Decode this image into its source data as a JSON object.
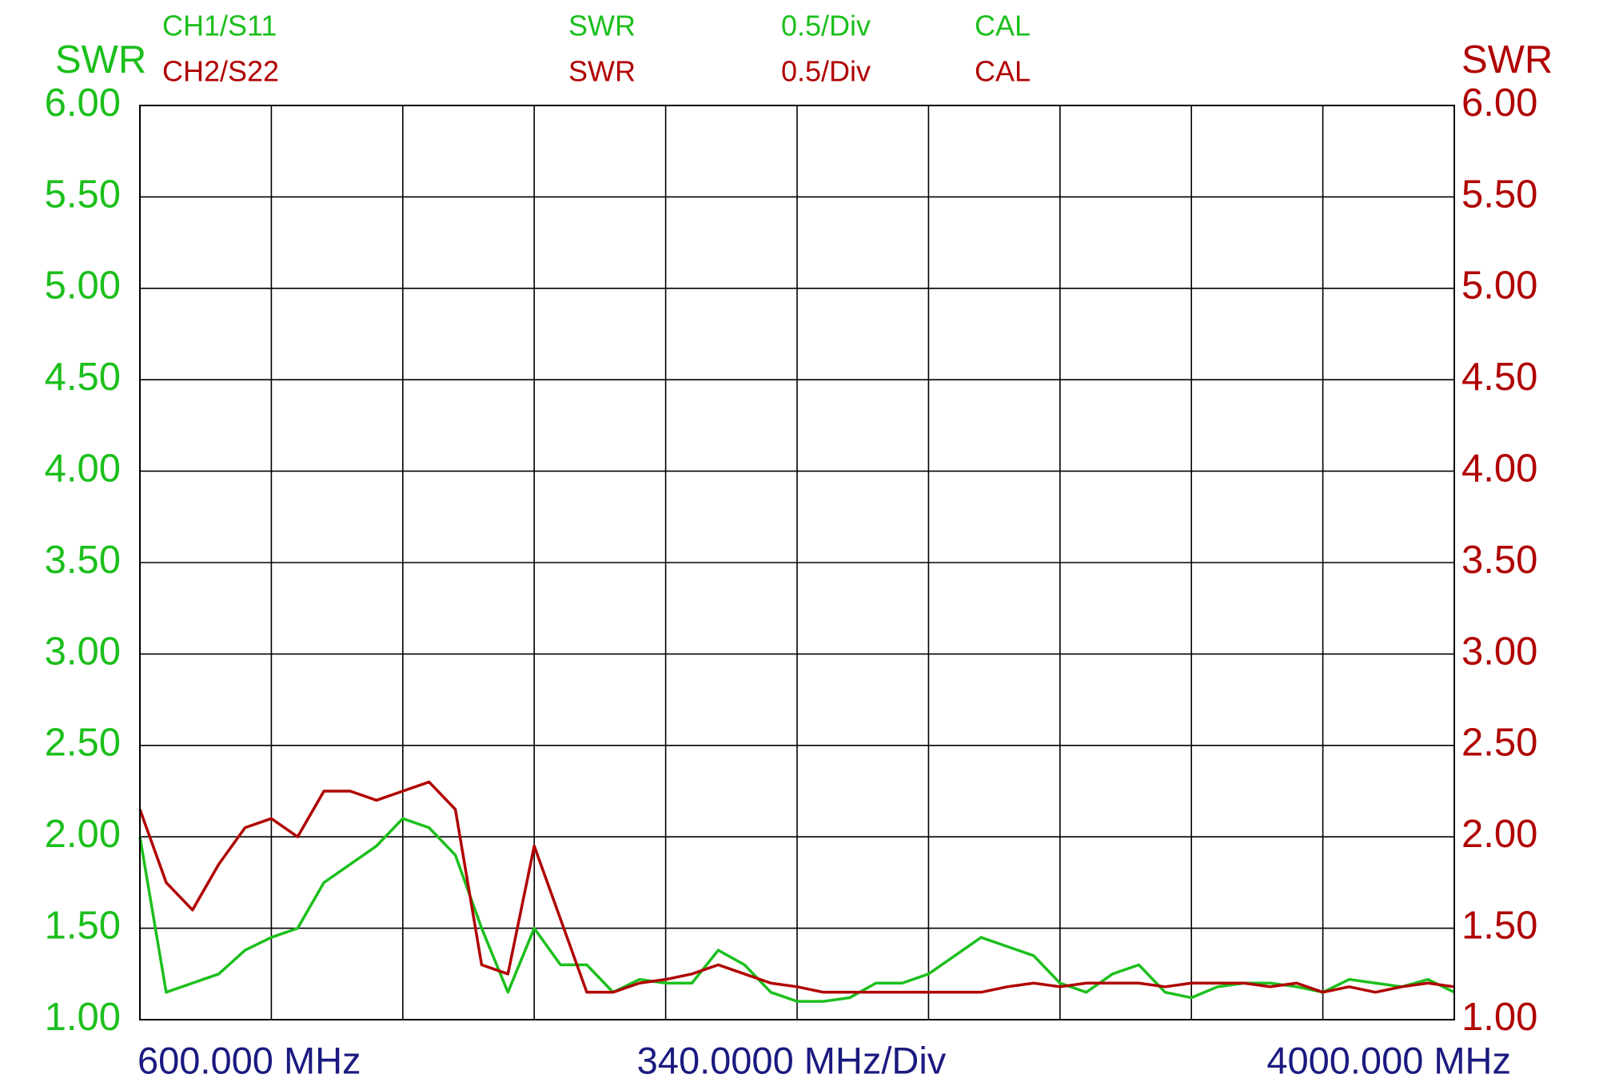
{
  "chart_data": {
    "type": "line",
    "ylabel": "SWR",
    "y2label": "SWR",
    "x_start_label": "600.000 MHz",
    "x_scale_label": "340.0000 MHz/Div",
    "x_end_label": "4000.000 MHz",
    "xlim": [
      600,
      4000
    ],
    "xticks": [
      600,
      940,
      1280,
      1620,
      1960,
      2300,
      2640,
      2980,
      3320,
      3660,
      4000
    ],
    "ylim": [
      1,
      6
    ],
    "yticks": [
      {
        "value": 1,
        "label": "1.00"
      },
      {
        "value": 1.5,
        "label": "1.50"
      },
      {
        "value": 2,
        "label": "2.00"
      },
      {
        "value": 2.5,
        "label": "2.50"
      },
      {
        "value": 3,
        "label": "3.00"
      },
      {
        "value": 3.5,
        "label": "3.50"
      },
      {
        "value": 4,
        "label": "4.00"
      },
      {
        "value": 4.5,
        "label": "4.50"
      },
      {
        "value": 5,
        "label": "5.00"
      },
      {
        "value": 5.5,
        "label": "5.50"
      },
      {
        "value": 6,
        "label": "6.00"
      }
    ],
    "y2lim": [
      1,
      6
    ],
    "y2ticks": [
      {
        "value": 1,
        "label": "1.00"
      },
      {
        "value": 1.5,
        "label": "1.50"
      },
      {
        "value": 2,
        "label": "2.00"
      },
      {
        "value": 2.5,
        "label": "2.50"
      },
      {
        "value": 3,
        "label": "3.00"
      },
      {
        "value": 3.5,
        "label": "3.50"
      },
      {
        "value": 4,
        "label": "4.00"
      },
      {
        "value": 4.5,
        "label": "4.50"
      },
      {
        "value": 5,
        "label": "5.00"
      },
      {
        "value": 5.5,
        "label": "5.50"
      },
      {
        "value": 6,
        "label": "6.00"
      }
    ],
    "grid": true,
    "x": [
      600,
      668,
      736,
      804,
      872,
      940,
      1008,
      1076,
      1144,
      1212,
      1280,
      1348,
      1416,
      1484,
      1552,
      1620,
      1688,
      1756,
      1824,
      1892,
      1960,
      2028,
      2096,
      2164,
      2232,
      2300,
      2368,
      2436,
      2504,
      2572,
      2640,
      2708,
      2776,
      2844,
      2912,
      2980,
      3048,
      3116,
      3184,
      3252,
      3320,
      3388,
      3456,
      3524,
      3592,
      3660,
      3728,
      3796,
      3864,
      3932,
      4000
    ],
    "series": [
      {
        "name": "CH1/S11",
        "format": "SWR",
        "scale": "0.5/Div",
        "status": "CAL",
        "color": "#1cbf1c",
        "values": [
          2.0,
          1.15,
          1.2,
          1.25,
          1.38,
          1.45,
          1.5,
          1.75,
          1.85,
          1.95,
          2.1,
          2.05,
          1.9,
          1.5,
          1.15,
          1.5,
          1.3,
          1.3,
          1.15,
          1.22,
          1.2,
          1.2,
          1.38,
          1.3,
          1.15,
          1.1,
          1.1,
          1.12,
          1.2,
          1.2,
          1.25,
          1.35,
          1.45,
          1.4,
          1.35,
          1.2,
          1.15,
          1.25,
          1.3,
          1.15,
          1.12,
          1.18,
          1.2,
          1.2,
          1.18,
          1.15,
          1.22,
          1.2,
          1.18,
          1.22,
          1.15
        ]
      },
      {
        "name": "CH2/S22",
        "format": "SWR",
        "scale": "0.5/Div",
        "status": "CAL",
        "color": "#b00000",
        "axis": "y2",
        "values": [
          2.15,
          1.75,
          1.6,
          1.85,
          2.05,
          2.1,
          2.0,
          2.25,
          2.25,
          2.2,
          2.25,
          2.3,
          2.15,
          1.3,
          1.25,
          1.95,
          1.55,
          1.15,
          1.15,
          1.2,
          1.22,
          1.25,
          1.3,
          1.25,
          1.2,
          1.18,
          1.15,
          1.15,
          1.15,
          1.15,
          1.15,
          1.15,
          1.15,
          1.18,
          1.2,
          1.18,
          1.2,
          1.2,
          1.2,
          1.18,
          1.2,
          1.2,
          1.2,
          1.18,
          1.2,
          1.15,
          1.18,
          1.15,
          1.18,
          1.2,
          1.18
        ]
      }
    ],
    "axis_label_color": "#1a1a80"
  }
}
